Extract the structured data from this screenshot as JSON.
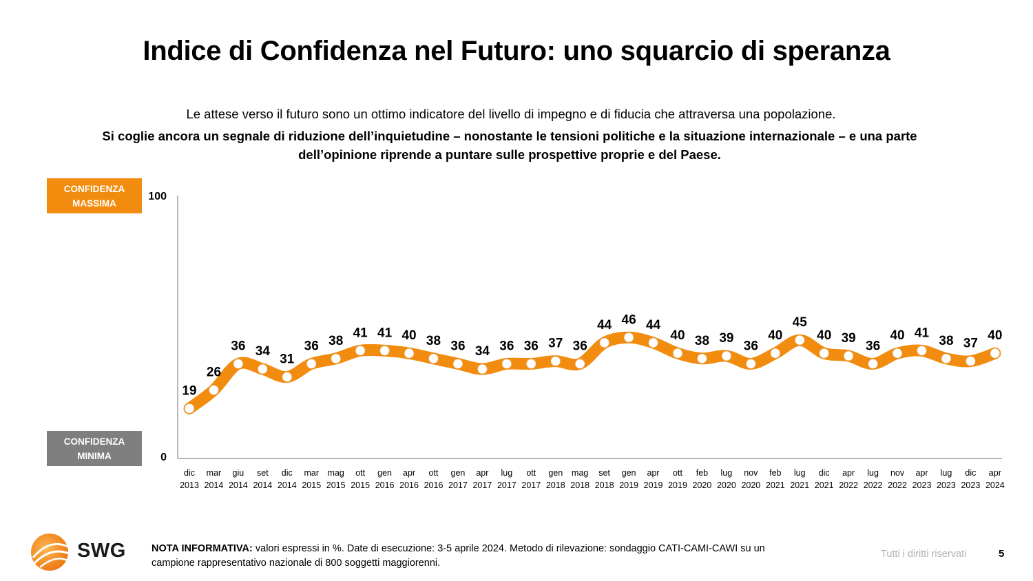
{
  "title": "Indice di Confidenza nel Futuro: uno squarcio di speranza",
  "subtitle_line1": "Le attese verso il futuro sono un ottimo indicatore del livello di impegno e di fiducia che attraversa una popolazione.",
  "subtitle_line2": "Si coglie ancora un segnale di riduzione dell’inquietudine – nonostante le tensioni politiche e la situazione internazionale – e una parte dell’opinione riprende a puntare sulle prospettive proprie e del Paese.",
  "tags": {
    "max_line1": "CONFIDENZA",
    "max_line2": "MASSIMA",
    "min_line1": "CONFIDENZA",
    "min_line2": "MINIMA"
  },
  "chart_data": {
    "type": "line",
    "y_tick_labels": [
      "0",
      "100"
    ],
    "ylim": [
      0,
      100
    ],
    "grid": false,
    "categories": [
      [
        "dic",
        "2013"
      ],
      [
        "mar",
        "2014"
      ],
      [
        "giu",
        "2014"
      ],
      [
        "set",
        "2014"
      ],
      [
        "dic",
        "2014"
      ],
      [
        "mar",
        "2015"
      ],
      [
        "mag",
        "2015"
      ],
      [
        "ott",
        "2015"
      ],
      [
        "gen",
        "2016"
      ],
      [
        "apr",
        "2016"
      ],
      [
        "ott",
        "2016"
      ],
      [
        "gen",
        "2017"
      ],
      [
        "apr",
        "2017"
      ],
      [
        "lug",
        "2017"
      ],
      [
        "ott",
        "2017"
      ],
      [
        "gen",
        "2018"
      ],
      [
        "mag",
        "2018"
      ],
      [
        "set",
        "2018"
      ],
      [
        "gen",
        "2019"
      ],
      [
        "apr",
        "2019"
      ],
      [
        "ott",
        "2019"
      ],
      [
        "feb",
        "2020"
      ],
      [
        "lug",
        "2020"
      ],
      [
        "nov",
        "2020"
      ],
      [
        "feb",
        "2021"
      ],
      [
        "lug",
        "2021"
      ],
      [
        "dic",
        "2021"
      ],
      [
        "apr",
        "2022"
      ],
      [
        "lug",
        "2022"
      ],
      [
        "nov",
        "2022"
      ],
      [
        "apr",
        "2023"
      ],
      [
        "lug",
        "2023"
      ],
      [
        "dic",
        "2023"
      ],
      [
        "apr",
        "2024"
      ]
    ],
    "values": [
      19,
      26,
      36,
      34,
      31,
      36,
      38,
      41,
      41,
      40,
      38,
      36,
      34,
      36,
      36,
      37,
      36,
      44,
      46,
      44,
      40,
      38,
      39,
      36,
      40,
      45,
      40,
      39,
      36,
      40,
      41,
      38,
      37,
      40
    ],
    "line_color": "#f28c0f",
    "marker_color": "#ffffff"
  },
  "footer": {
    "note_label": "NOTA INFORMATIVA:",
    "note_text": " valori espressi in %. Date di esecuzione: 3-5 aprile 2024. Metodo di rilevazione: sondaggio CATI-CAMI-CAWI su un campione rappresentativo nazionale di 800 soggetti maggiorenni.",
    "rights": "Tutti i diritti riservati",
    "page": "5",
    "logo_text": "SWG"
  }
}
